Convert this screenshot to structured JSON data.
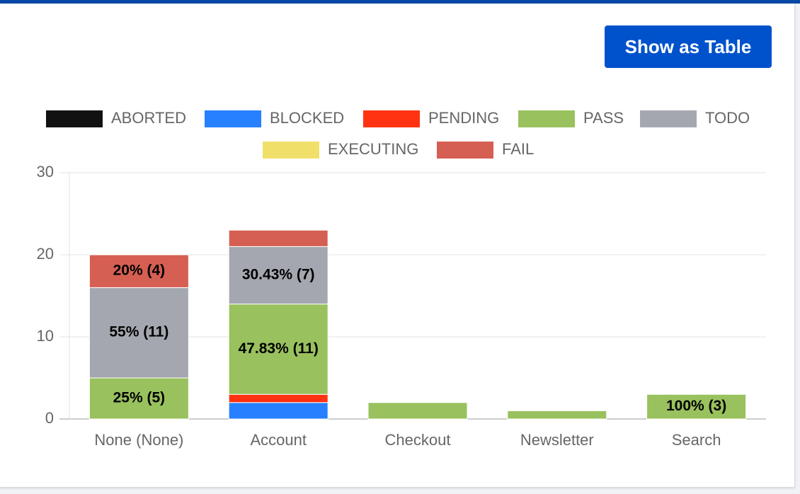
{
  "button": "Show as Table",
  "chart_data": {
    "type": "stacked-bar",
    "categories": [
      "None (None)",
      "Account",
      "Checkout",
      "Newsletter",
      "Search"
    ],
    "series": [
      {
        "name": "ABORTED",
        "color": "#111111",
        "values": [
          0,
          0,
          0,
          0,
          0
        ]
      },
      {
        "name": "BLOCKED",
        "color": "#2680ff",
        "values": [
          0,
          2,
          0,
          0,
          0
        ]
      },
      {
        "name": "PENDING",
        "color": "#ff3311",
        "values": [
          0,
          1,
          0,
          0,
          0
        ]
      },
      {
        "name": "PASS",
        "color": "#99c15e",
        "values": [
          5,
          11,
          2,
          1,
          3
        ],
        "value_labels": [
          "25% (5)",
          "47.83% (11)",
          null,
          null,
          "100% (3)"
        ]
      },
      {
        "name": "TODO",
        "color": "#a4a7af",
        "values": [
          11,
          7,
          0,
          0,
          0
        ],
        "value_labels": [
          "55% (11)",
          "30.43% (7)",
          null,
          null,
          null
        ]
      },
      {
        "name": "EXECUTING",
        "color": "#f0e06a",
        "values": [
          0,
          0,
          0,
          0,
          0
        ]
      },
      {
        "name": "FAIL",
        "color": "#d55f52",
        "values": [
          4,
          2,
          0,
          0,
          0
        ],
        "value_labels": [
          "20% (4)",
          null,
          null,
          null,
          null
        ]
      }
    ],
    "ylim": [
      0,
      30
    ],
    "yticks": [
      0,
      10,
      20,
      30
    ],
    "grid": true
  }
}
